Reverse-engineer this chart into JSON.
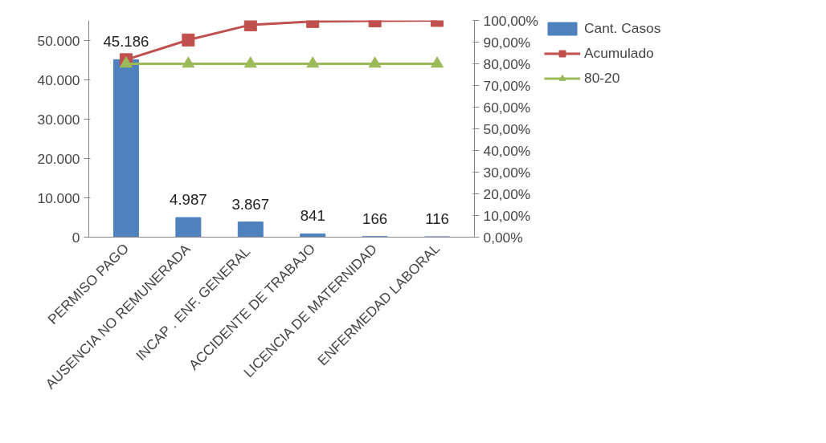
{
  "chart_data": {
    "type": "bar",
    "categories": [
      "PERMISO PAGO",
      "AUSENCIA NO REMUNERADA",
      "INCAP . ENF.  GENERAL",
      "ACCIDENTE DE TRABAJO",
      "LICENCIA DE MATERNIDAD",
      "ENFERMEDAD LABORAL"
    ],
    "series": [
      {
        "name": "Cant. Casos",
        "color": "#4f81bd",
        "values": [
          45186,
          4987,
          3867,
          841,
          166,
          116
        ],
        "value_labels": [
          "45.186",
          "4.987",
          "3.867",
          "841",
          "166",
          "116"
        ]
      },
      {
        "name": "Acumulado",
        "type": "line",
        "axis": "y2",
        "marker": "square",
        "color": "#c0504d",
        "values": [
          81.9,
          91.0,
          98.0,
          99.5,
          99.8,
          100
        ]
      },
      {
        "name": "80-20",
        "type": "line",
        "axis": "y2",
        "marker": "triangle",
        "color": "#9bbb59",
        "values": [
          80,
          80,
          80,
          80,
          80,
          80
        ]
      }
    ],
    "ylim": [
      0,
      55163
    ],
    "yticks": [
      {
        "value": 0,
        "label": "0"
      },
      {
        "value": 10000,
        "label": "10.000"
      },
      {
        "value": 20000,
        "label": "20.000"
      },
      {
        "value": 30000,
        "label": "30.000"
      },
      {
        "value": 40000,
        "label": "40.000"
      },
      {
        "value": 50000,
        "label": "50.000"
      }
    ],
    "y2lim": [
      0,
      100
    ],
    "y2ticks": [
      {
        "value": 0,
        "label": "0,00%"
      },
      {
        "value": 10,
        "label": "10,00%"
      },
      {
        "value": 20,
        "label": "20,00%"
      },
      {
        "value": 30,
        "label": "30,00%"
      },
      {
        "value": 40,
        "label": "40,00%"
      },
      {
        "value": 50,
        "label": "50,00%"
      },
      {
        "value": 60,
        "label": "60,00%"
      },
      {
        "value": 70,
        "label": "70,00%"
      },
      {
        "value": 80,
        "label": "80,00%"
      },
      {
        "value": 90,
        "label": "90,00%"
      },
      {
        "value": 100,
        "label": "100,00%"
      }
    ],
    "grid": false,
    "legend": "right"
  }
}
